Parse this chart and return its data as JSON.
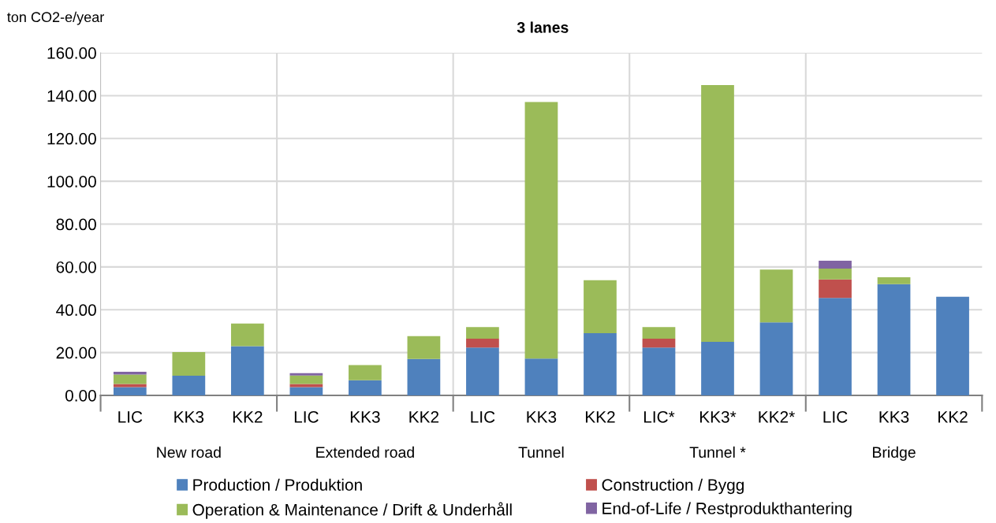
{
  "chart_data": {
    "type": "bar",
    "stacked": true,
    "title": "3 lanes",
    "ylabel": "ton CO2-e/year",
    "categories": [
      "LIC",
      "KK3",
      "KK2",
      "LIC",
      "KK3",
      "KK2",
      "LIC",
      "KK3",
      "KK2",
      "LIC*",
      "KK3*",
      "KK2*",
      "LIC",
      "KK3",
      "KK2"
    ],
    "annotations": [
      "New road",
      "Extended road",
      "Tunnel",
      "Tunnel *",
      "Bridge"
    ],
    "series": [
      {
        "name": "Production / Produktion",
        "color": "#4f81bd",
        "values": [
          3.9,
          9.2,
          23.0,
          3.9,
          7.1,
          17.0,
          22.3,
          17.2,
          29.1,
          22.3,
          25.0,
          34.1,
          45.5,
          52.0,
          46.1
        ]
      },
      {
        "name": "Construction / Bygg",
        "color": "#c0504d",
        "values": [
          1.4,
          null,
          null,
          1.4,
          null,
          null,
          4.2,
          null,
          null,
          4.2,
          null,
          null,
          8.7,
          null,
          null
        ]
      },
      {
        "name": "Operation & Maintenance / Drift & Underhåll",
        "color": "#9bbb59",
        "values": [
          4.4,
          11.0,
          10.6,
          4.0,
          7.1,
          10.7,
          5.4,
          119.8,
          24.7,
          5.4,
          119.9,
          24.7,
          5.0,
          3.2,
          null
        ]
      },
      {
        "name": "End-of-Life / Restprodukthantering",
        "color": "#8064a2",
        "values": [
          1.3,
          null,
          null,
          1.1,
          null,
          null,
          null,
          null,
          null,
          null,
          null,
          null,
          3.7,
          null,
          null
        ]
      }
    ],
    "ylim": [
      0,
      160
    ],
    "yticks": [
      {
        "value": 0,
        "label": "0.00"
      },
      {
        "value": 20,
        "label": "20.00"
      },
      {
        "value": 40,
        "label": "40.00"
      },
      {
        "value": 60,
        "label": "60.00"
      },
      {
        "value": 80,
        "label": "80.00"
      },
      {
        "value": 100,
        "label": "100.00"
      },
      {
        "value": 120,
        "label": "120.00"
      },
      {
        "value": 140,
        "label": "140.00"
      },
      {
        "value": 160,
        "label": "160.00"
      }
    ],
    "grid": "y",
    "legend": "bottom"
  }
}
